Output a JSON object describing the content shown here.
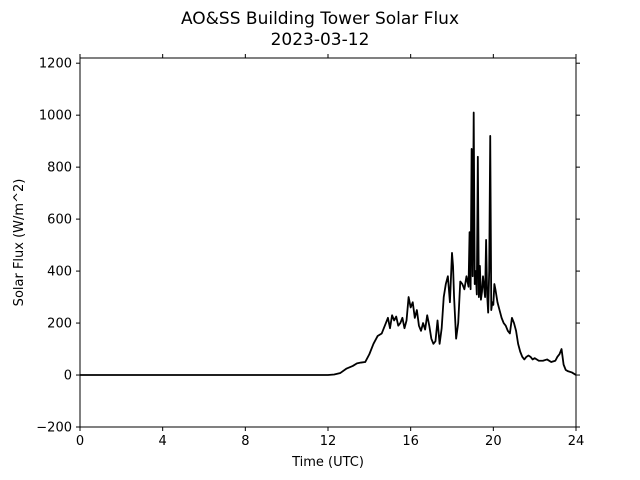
{
  "chart_data": {
    "type": "line",
    "title": "AO&SS Building Tower Solar Flux",
    "subtitle": "2023-03-12",
    "xlabel": "Time (UTC)",
    "ylabel": "Solar Flux (W/m^2)",
    "xlim": [
      0,
      24
    ],
    "ylim": [
      -200,
      1220
    ],
    "xticks": [
      0,
      4,
      8,
      12,
      16,
      20,
      24
    ],
    "xtick_labels": [
      "0",
      "4",
      "8",
      "12",
      "16",
      "20",
      "24"
    ],
    "yticks": [
      -200,
      0,
      200,
      400,
      600,
      800,
      1000,
      1200
    ],
    "ytick_labels": [
      "−200",
      "0",
      "200",
      "400",
      "600",
      "800",
      "1000",
      "1200"
    ],
    "grid": false,
    "series": [
      {
        "color": "#000000",
        "x": [
          0,
          12.0,
          12.3,
          12.6,
          12.9,
          13.2,
          13.4,
          13.6,
          13.8,
          14.0,
          14.2,
          14.4,
          14.6,
          14.8,
          14.9,
          15.0,
          15.1,
          15.2,
          15.3,
          15.4,
          15.5,
          15.6,
          15.7,
          15.8,
          15.9,
          16.0,
          16.1,
          16.2,
          16.3,
          16.4,
          16.5,
          16.6,
          16.7,
          16.8,
          16.9,
          17.0,
          17.1,
          17.2,
          17.3,
          17.4,
          17.5,
          17.6,
          17.7,
          17.8,
          17.9,
          18.0,
          18.05,
          18.1,
          18.2,
          18.3,
          18.4,
          18.5,
          18.6,
          18.7,
          18.8,
          18.85,
          18.9,
          18.95,
          19.0,
          19.05,
          19.1,
          19.15,
          19.2,
          19.25,
          19.3,
          19.35,
          19.4,
          19.45,
          19.5,
          19.6,
          19.65,
          19.7,
          19.75,
          19.8,
          19.85,
          19.9,
          19.95,
          20.0,
          20.05,
          20.1,
          20.2,
          20.3,
          20.4,
          20.5,
          20.6,
          20.7,
          20.8,
          20.9,
          21.0,
          21.1,
          21.2,
          21.3,
          21.4,
          21.5,
          21.6,
          21.7,
          21.8,
          21.9,
          22.0,
          22.2,
          22.4,
          22.6,
          22.8,
          23.0,
          23.1,
          23.2,
          23.3,
          23.4,
          23.5,
          23.6,
          23.8,
          24.0
        ],
        "values": [
          0,
          0,
          2,
          8,
          25,
          35,
          45,
          48,
          50,
          80,
          120,
          150,
          160,
          200,
          220,
          180,
          230,
          210,
          225,
          190,
          200,
          220,
          180,
          210,
          300,
          260,
          280,
          220,
          250,
          190,
          170,
          200,
          175,
          230,
          190,
          140,
          120,
          130,
          210,
          120,
          180,
          300,
          350,
          380,
          280,
          470,
          420,
          300,
          140,
          200,
          360,
          350,
          330,
          380,
          340,
          550,
          330,
          870,
          380,
          1010,
          350,
          400,
          310,
          840,
          300,
          420,
          290,
          320,
          380,
          300,
          520,
          310,
          240,
          400,
          920,
          250,
          280,
          270,
          350,
          330,
          280,
          250,
          220,
          200,
          190,
          170,
          160,
          220,
          200,
          170,
          120,
          90,
          70,
          60,
          70,
          75,
          70,
          60,
          65,
          55,
          55,
          60,
          50,
          55,
          70,
          80,
          100,
          40,
          20,
          15,
          10,
          0
        ]
      }
    ]
  }
}
